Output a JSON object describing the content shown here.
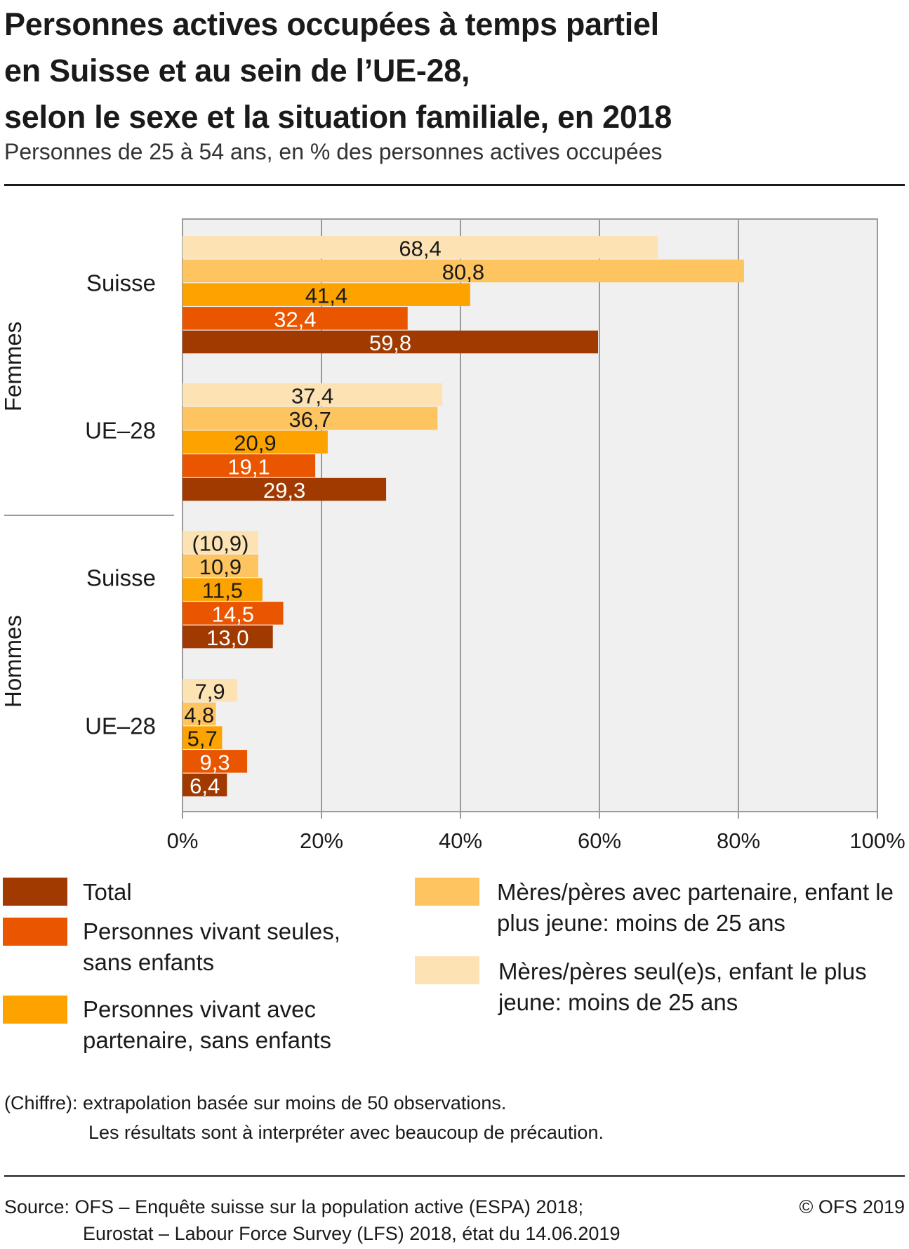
{
  "header": {
    "title_lines": [
      "Personnes actives occupées à temps partiel",
      "en Suisse et au sein de l’UE-28,",
      "selon le sexe et la situation familiale, en 2018"
    ],
    "subtitle": "Personnes de 25 à 54 ans, en % des personnes actives occupées"
  },
  "chart_data": {
    "type": "bar",
    "orientation": "horizontal",
    "xlim": [
      0,
      100
    ],
    "x_ticks": [
      "0%",
      "20%",
      "40%",
      "60%",
      "80%",
      "100%"
    ],
    "x_tick_values": [
      0,
      20,
      40,
      60,
      80,
      100
    ],
    "grid": true,
    "sex_groups": [
      "Femmes",
      "Hommes"
    ],
    "categories": [
      "Suisse",
      "UE–28",
      "Suisse",
      "UE–28"
    ],
    "series": [
      {
        "name": "Mères/pères seul(e)s, enfant le plus jeune: moins de 25 ans",
        "color": "#fde3b4",
        "values": [
          68.4,
          37.4,
          10.9,
          7.9
        ],
        "labels": [
          "68,4",
          "37,4",
          "(10,9)",
          "7,9"
        ]
      },
      {
        "name": "Mères/pères avec partenaire, enfant le plus jeune: moins de 25 ans",
        "color": "#fdc460",
        "values": [
          80.8,
          36.7,
          10.9,
          4.8
        ],
        "labels": [
          "80,8",
          "36,7",
          "10,9",
          "4,8"
        ]
      },
      {
        "name": "Personnes vivant avec partenaire, sans enfants",
        "color": "#fca300",
        "values": [
          41.4,
          20.9,
          11.5,
          5.7
        ],
        "labels": [
          "41,4",
          "20,9",
          "11,5",
          "5,7"
        ]
      },
      {
        "name": "Personnes vivant seules, sans enfants",
        "color": "#ea5500",
        "values": [
          32.4,
          19.1,
          14.5,
          9.3
        ],
        "labels": [
          "32,4",
          "19,1",
          "14,5",
          "9,3"
        ]
      },
      {
        "name": "Total",
        "color": "#a03a00",
        "values": [
          59.8,
          29.3,
          13.0,
          6.4
        ],
        "labels": [
          "59,8",
          "29,3",
          "13,0",
          "6,4"
        ]
      }
    ],
    "label_colors": {
      "dark_text": "#1a1a1a",
      "light_text": "#ffffff"
    },
    "plot_background": "#f0f0f0",
    "grid_color": "#9a9a9a"
  },
  "legend": [
    {
      "label": "Total",
      "color": "#a03a00"
    },
    {
      "label": "Personnes vivant seules, sans enfants",
      "color": "#ea5500"
    },
    {
      "label": "Personnes vivant avec partenaire, sans enfants",
      "color": "#fca300"
    },
    {
      "label": "Mères/pères avec partenaire, enfant le plus jeune: moins de 25 ans",
      "color": "#fdc460"
    },
    {
      "label": "Mères/pères seul(e)s, enfant le plus jeune: moins de 25 ans",
      "color": "#fde3b4"
    }
  ],
  "notes": {
    "line1": "(Chiffre): extrapolation basée sur moins de 50 observations.",
    "line2": "Les résultats sont à interpréter avec beaucoup de précaution."
  },
  "footer": {
    "source_line1": "Source: OFS – Enquête suisse sur la population active (ESPA) 2018;",
    "source_line2": "Eurostat – Labour Force Survey (LFS) 2018, état du 14.06.2019",
    "copyright": "© OFS 2019"
  }
}
